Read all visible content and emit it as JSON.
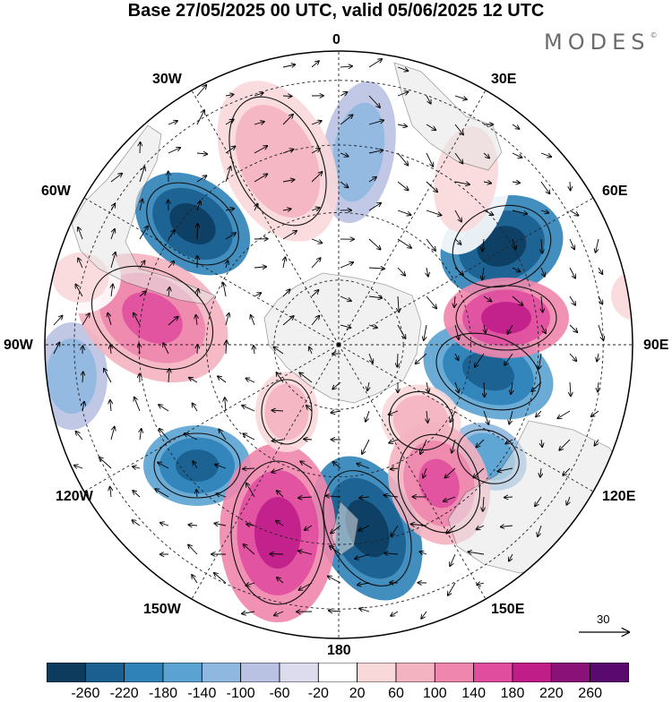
{
  "title": "Base 27/05/2025 00 UTC, valid 05/06/2025 12 UTC",
  "logo": "MODES",
  "logo_mark": "©",
  "longitude_labels": [
    {
      "id": "0",
      "text": "0"
    },
    {
      "id": "30e",
      "text": "30E"
    },
    {
      "id": "60e",
      "text": "60E"
    },
    {
      "id": "90e",
      "text": "90E"
    },
    {
      "id": "120e",
      "text": "120E"
    },
    {
      "id": "150e",
      "text": "150E"
    },
    {
      "id": "180",
      "text": "180"
    },
    {
      "id": "150w",
      "text": "150W"
    },
    {
      "id": "120w",
      "text": "120W"
    },
    {
      "id": "90w",
      "text": "90W"
    },
    {
      "id": "60w",
      "text": "60W"
    },
    {
      "id": "30w",
      "text": "30W"
    }
  ],
  "reference_vector": "30",
  "colorbar": {
    "ticks": [
      "-260",
      "-220",
      "-180",
      "-140",
      "-100",
      "-60",
      "-20",
      "20",
      "60",
      "100",
      "140",
      "180",
      "220",
      "260"
    ],
    "colors": [
      "#0d3b5e",
      "#1a5f8f",
      "#2e82b8",
      "#5aa3d2",
      "#8fb8e0",
      "#b9c2e2",
      "#dcdcee",
      "#ffffff",
      "#f9d8da",
      "#f4b3c0",
      "#ef86ad",
      "#e04d9f",
      "#c01d89",
      "#8a1177",
      "#5a0a6e"
    ]
  },
  "colors": {
    "land": "#e6e6e6",
    "dashed_grid": "#222222"
  }
}
